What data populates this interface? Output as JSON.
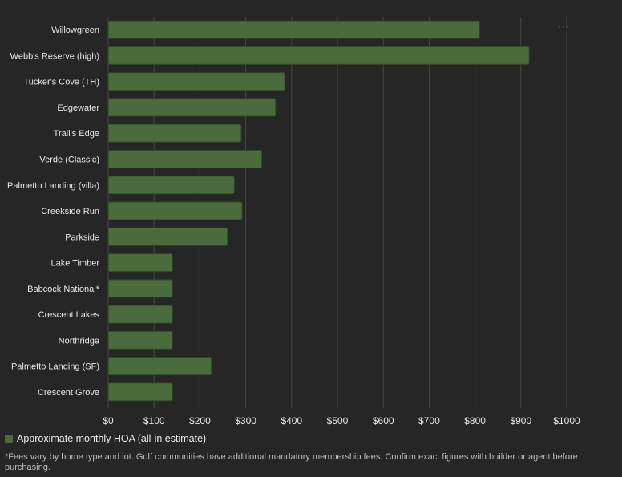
{
  "chart_data": {
    "type": "bar",
    "orientation": "horizontal",
    "categories": [
      "Willowgreen",
      "Webb's Reserve (high)",
      "Tucker's Cove (TH)",
      "Edgewater",
      "Trail's Edge",
      "Verde (Classic)",
      "Palmetto Landing (villa)",
      "Creekside Run",
      "Parkside",
      "Lake Timber",
      "Babcock National*",
      "Crescent Lakes",
      "Northridge",
      "Palmetto Landing (SF)",
      "Crescent Grove"
    ],
    "series": [
      {
        "name": "Approximate monthly HOA (all-in estimate)",
        "color": "#4a6b3c",
        "values": [
          810,
          918,
          385,
          365,
          290,
          335,
          275,
          292,
          260,
          140,
          140,
          140,
          140,
          225,
          140
        ]
      }
    ],
    "xlim": [
      0,
      1000
    ],
    "x_ticks": [
      0,
      100,
      200,
      300,
      400,
      500,
      600,
      700,
      800,
      900,
      1000
    ],
    "x_tick_labels": [
      "$0",
      "$100",
      "$200",
      "$300",
      "$400",
      "$500",
      "$600",
      "$700",
      "$800",
      "$900",
      "$1000"
    ],
    "grid": true,
    "legend_position": "bottom-left",
    "title": "",
    "xlabel": "",
    "ylabel": ""
  },
  "legend": {
    "label": "Approximate monthly HOA (all-in estimate)",
    "color": "#4a6b3c"
  },
  "footnote": "*Fees vary by home type and lot. Golf communities have additional mandatory membership fees. Confirm exact figures with builder or agent before purchasing.",
  "menu": {
    "icon": "more-options-icon",
    "glyph": "···"
  }
}
